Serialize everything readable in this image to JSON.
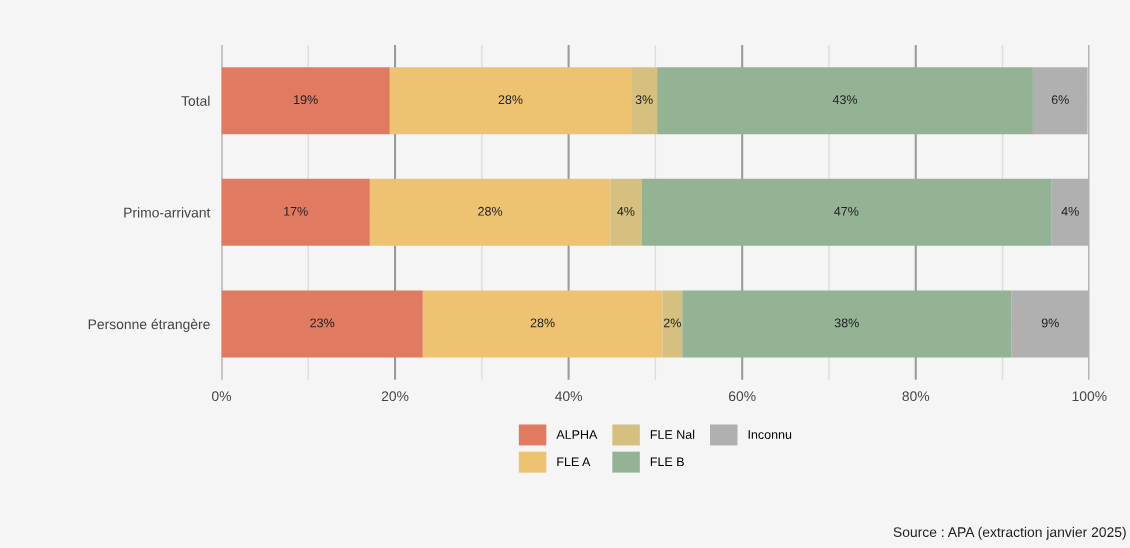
{
  "chart_data": {
    "type": "bar",
    "orientation": "horizontal",
    "stacked": true,
    "categories": [
      "Total",
      "Primo-arrivant",
      "Personne étrangère"
    ],
    "series": [
      {
        "name": "ALPHA",
        "color": "#e07b62",
        "values": [
          19.4,
          17.1,
          23.2
        ],
        "value_labels": [
          "19%",
          "17%",
          "23%"
        ]
      },
      {
        "name": "FLE A",
        "color": "#edc372",
        "values": [
          27.8,
          27.7,
          27.6
        ],
        "value_labels": [
          "28%",
          "28%",
          "28%"
        ]
      },
      {
        "name": "FLE Nal",
        "color": "#d6c07f",
        "values": [
          3.0,
          3.6,
          2.3
        ],
        "value_labels": [
          "3%",
          "4%",
          "2%"
        ]
      },
      {
        "name": "FLE B",
        "color": "#93b394",
        "values": [
          43.3,
          47.2,
          37.9
        ],
        "value_labels": [
          "43%",
          "47%",
          "38%"
        ]
      },
      {
        "name": "Inconnu",
        "color": "#b0b0b0",
        "values": [
          6.3,
          4.4,
          9.0
        ],
        "value_labels": [
          "6%",
          "4%",
          "9%"
        ]
      }
    ],
    "xlim": [
      0,
      100
    ],
    "xticks": [
      {
        "value": 0,
        "label": "0%"
      },
      {
        "value": 10,
        "label": null
      },
      {
        "value": 20,
        "label": "20%"
      },
      {
        "value": 30,
        "label": null
      },
      {
        "value": 40,
        "label": "40%"
      },
      {
        "value": 50,
        "label": null
      },
      {
        "value": 60,
        "label": "60%"
      },
      {
        "value": 70,
        "label": null
      },
      {
        "value": 80,
        "label": "80%"
      },
      {
        "value": 90,
        "label": null
      },
      {
        "value": 100,
        "label": "100%"
      }
    ],
    "grid": true,
    "legend": "bottom",
    "annotations": [
      "Source : APA (extraction janvier 2025)"
    ]
  }
}
